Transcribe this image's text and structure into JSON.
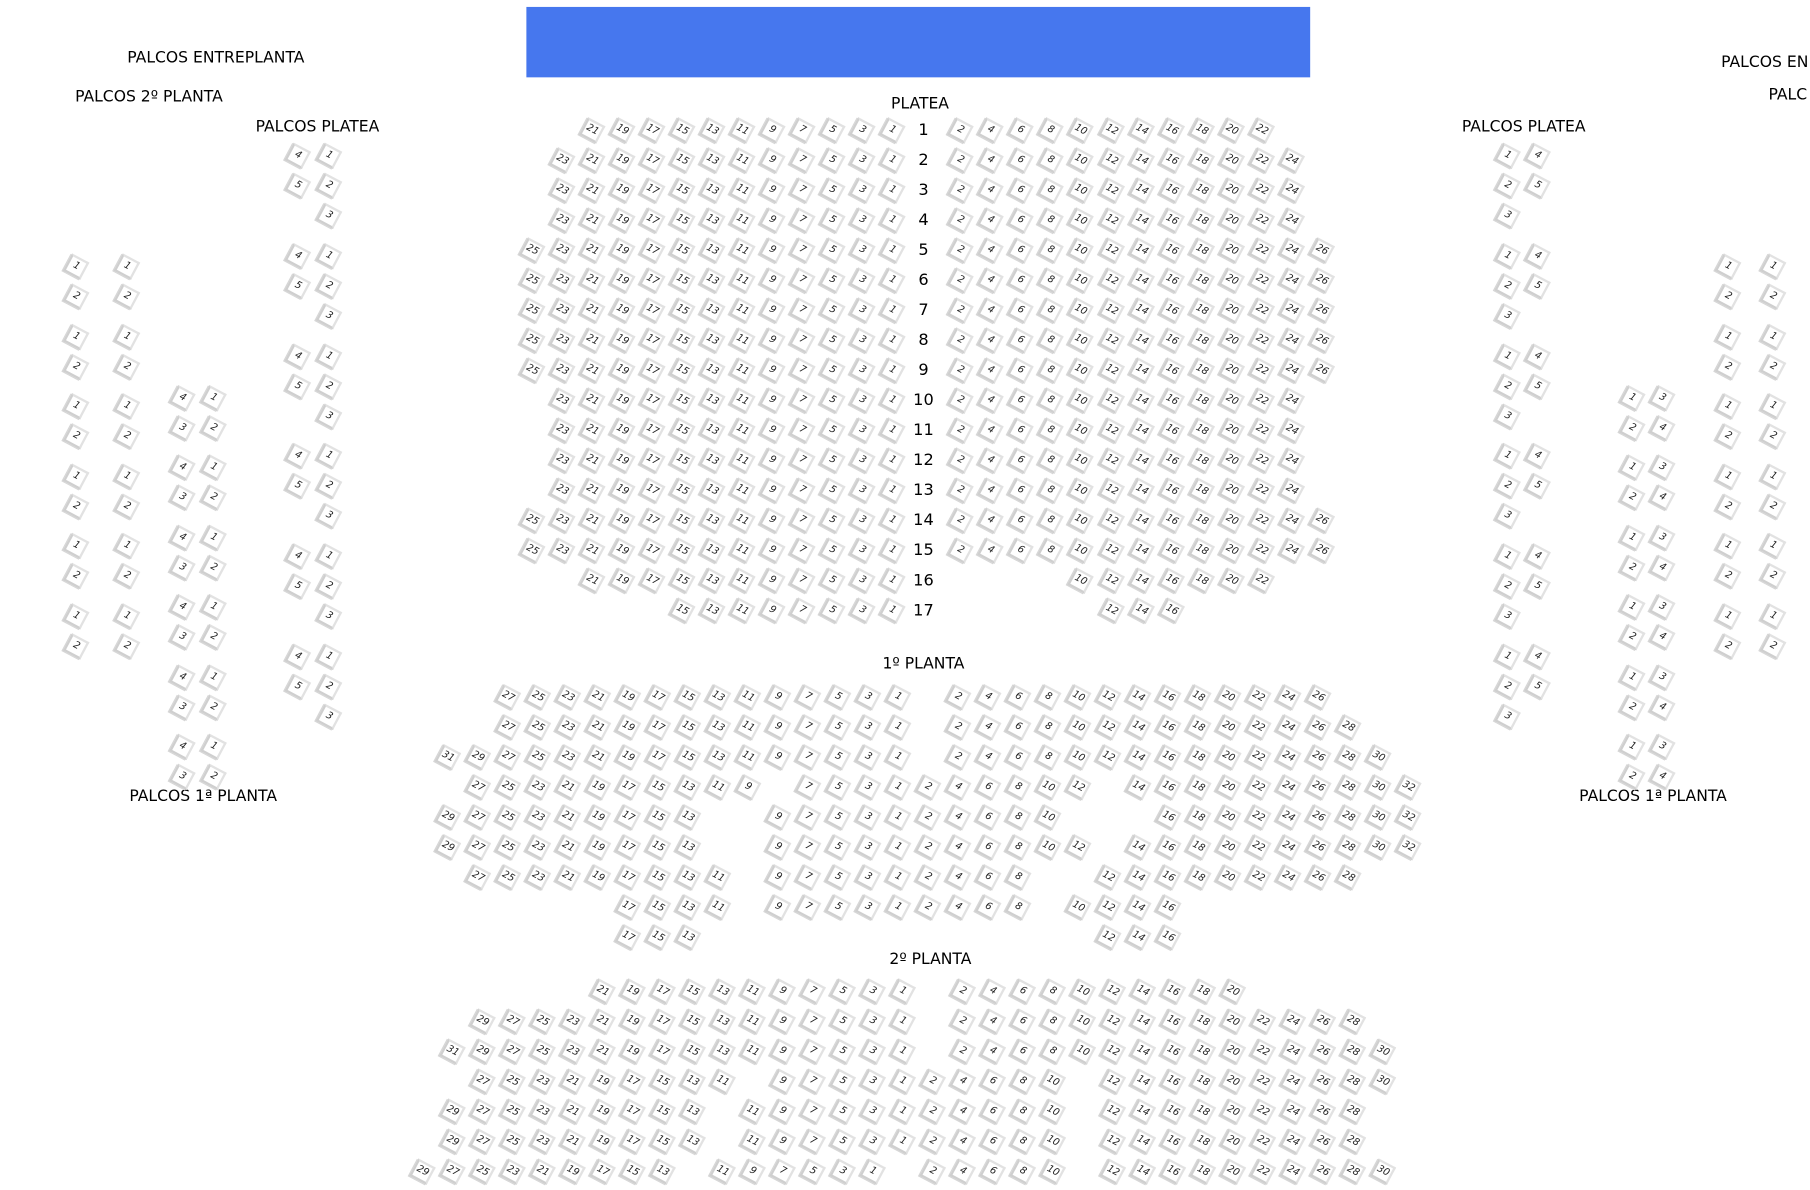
{
  "stage": {
    "color": "#4677ee"
  },
  "labels": {
    "palcos_entreplanta_left": "PALCOS ENTREPLANTA",
    "palcos_2_planta_left": "PALCOS 2º PLANTA",
    "palcos_platea_left": "PALCOS PLATEA",
    "palcos_1_planta_left": "PALCOS 1ª PLANTA",
    "palcos_entreplanta_right": "PALCOS EN",
    "palcos_2_planta_right": "PALC",
    "palcos_platea_right": "PALCOS PLATEA",
    "palcos_1_planta_right": "PALCOS 1ª PLANTA"
  },
  "platea": {
    "title": "PLATEA",
    "rows": [
      {
        "row": "1",
        "left": [
          21,
          19,
          17,
          15,
          13,
          11,
          9,
          7,
          5,
          3,
          1
        ],
        "right": [
          2,
          4,
          6,
          8,
          10,
          12,
          14,
          16,
          18,
          20,
          22
        ]
      },
      {
        "row": "2",
        "left": [
          23,
          21,
          19,
          17,
          15,
          13,
          11,
          9,
          7,
          5,
          3,
          1
        ],
        "right": [
          2,
          4,
          6,
          8,
          10,
          12,
          14,
          16,
          18,
          20,
          22,
          24
        ]
      },
      {
        "row": "3",
        "left": [
          23,
          21,
          19,
          17,
          15,
          13,
          11,
          9,
          7,
          5,
          3,
          1
        ],
        "right": [
          2,
          4,
          6,
          8,
          10,
          12,
          14,
          16,
          18,
          20,
          22,
          24
        ]
      },
      {
        "row": "4",
        "left": [
          23,
          21,
          19,
          17,
          15,
          13,
          11,
          9,
          7,
          5,
          3,
          1
        ],
        "right": [
          2,
          4,
          6,
          8,
          10,
          12,
          14,
          16,
          18,
          20,
          22,
          24
        ]
      },
      {
        "row": "5",
        "left": [
          25,
          23,
          21,
          19,
          17,
          15,
          13,
          11,
          9,
          7,
          5,
          3,
          1
        ],
        "right": [
          2,
          4,
          6,
          8,
          10,
          12,
          14,
          16,
          18,
          20,
          22,
          24,
          26
        ]
      },
      {
        "row": "6",
        "left": [
          25,
          23,
          21,
          19,
          17,
          15,
          13,
          11,
          9,
          7,
          5,
          3,
          1
        ],
        "right": [
          2,
          4,
          6,
          8,
          10,
          12,
          14,
          16,
          18,
          20,
          22,
          24,
          26
        ]
      },
      {
        "row": "7",
        "left": [
          25,
          23,
          21,
          19,
          17,
          15,
          13,
          11,
          9,
          7,
          5,
          3,
          1
        ],
        "right": [
          2,
          4,
          6,
          8,
          10,
          12,
          14,
          16,
          18,
          20,
          22,
          24,
          26
        ]
      },
      {
        "row": "8",
        "left": [
          25,
          23,
          21,
          19,
          17,
          15,
          13,
          11,
          9,
          7,
          5,
          3,
          1
        ],
        "right": [
          2,
          4,
          6,
          8,
          10,
          12,
          14,
          16,
          18,
          20,
          22,
          24,
          26
        ]
      },
      {
        "row": "9",
        "left": [
          25,
          23,
          21,
          19,
          17,
          15,
          13,
          11,
          9,
          7,
          5,
          3,
          1
        ],
        "right": [
          2,
          4,
          6,
          8,
          10,
          12,
          14,
          16,
          18,
          20,
          22,
          24,
          26
        ]
      },
      {
        "row": "10",
        "left": [
          23,
          21,
          19,
          17,
          15,
          13,
          11,
          9,
          7,
          5,
          3,
          1
        ],
        "right": [
          2,
          4,
          6,
          8,
          10,
          12,
          14,
          16,
          18,
          20,
          22,
          24
        ]
      },
      {
        "row": "11",
        "left": [
          23,
          21,
          19,
          17,
          15,
          13,
          11,
          9,
          7,
          5,
          3,
          1
        ],
        "right": [
          2,
          4,
          6,
          8,
          10,
          12,
          14,
          16,
          18,
          20,
          22,
          24
        ]
      },
      {
        "row": "12",
        "left": [
          23,
          21,
          19,
          17,
          15,
          13,
          11,
          9,
          7,
          5,
          3,
          1
        ],
        "right": [
          2,
          4,
          6,
          8,
          10,
          12,
          14,
          16,
          18,
          20,
          22,
          24
        ]
      },
      {
        "row": "13",
        "left": [
          23,
          21,
          19,
          17,
          15,
          13,
          11,
          9,
          7,
          5,
          3,
          1
        ],
        "right": [
          2,
          4,
          6,
          8,
          10,
          12,
          14,
          16,
          18,
          20,
          22,
          24
        ]
      },
      {
        "row": "14",
        "left": [
          25,
          23,
          21,
          19,
          17,
          15,
          13,
          11,
          9,
          7,
          5,
          3,
          1
        ],
        "right": [
          2,
          4,
          6,
          8,
          10,
          12,
          14,
          16,
          18,
          20,
          22,
          24,
          26
        ]
      },
      {
        "row": "15",
        "left": [
          25,
          23,
          21,
          19,
          17,
          15,
          13,
          11,
          9,
          7,
          5,
          3,
          1
        ],
        "right": [
          2,
          4,
          6,
          8,
          10,
          12,
          14,
          16,
          18,
          20,
          22,
          24,
          26
        ]
      },
      {
        "row": "16",
        "left": [
          21,
          19,
          17,
          15,
          13,
          11,
          9,
          7,
          5,
          3,
          1
        ],
        "right": [
          10,
          12,
          14,
          16,
          18,
          20,
          22
        ]
      },
      {
        "row": "17",
        "left": [
          15,
          13,
          11,
          9,
          7,
          5,
          3,
          1
        ],
        "right": [
          12,
          14,
          16
        ]
      }
    ]
  },
  "planta1": {
    "title": "1º PLANTA",
    "rows": [
      [
        [
          27,
          25,
          23,
          21,
          19,
          17,
          15,
          13,
          11,
          9,
          7,
          5,
          3,
          1
        ],
        [
          2,
          4,
          6,
          8,
          10,
          12,
          14,
          16,
          18,
          20,
          22,
          24,
          26
        ]
      ],
      [
        [
          27,
          25,
          23,
          21,
          19,
          17,
          15,
          13,
          11,
          9,
          7,
          5,
          3,
          1
        ],
        [
          2,
          4,
          6,
          8,
          10,
          12,
          14,
          16,
          18,
          20,
          22,
          24,
          26,
          28
        ]
      ],
      [
        [
          31,
          29,
          27,
          25,
          23,
          21,
          19,
          17,
          15,
          13,
          11,
          9,
          7,
          5,
          3,
          1
        ],
        [
          2,
          4,
          6,
          8,
          10,
          12,
          14,
          16,
          18,
          20,
          22,
          24,
          26,
          28,
          30
        ]
      ],
      [
        [
          27,
          25,
          23,
          21,
          19,
          17,
          15,
          13,
          11,
          9
        ],
        [
          7,
          5,
          3,
          1,
          2,
          4,
          6,
          8,
          10,
          12
        ],
        [
          14,
          16,
          18,
          20,
          22,
          24,
          26,
          28,
          30,
          32
        ]
      ],
      [
        [
          29,
          27,
          25,
          23,
          21,
          19,
          17,
          15,
          13
        ],
        [
          9,
          7,
          5,
          3,
          1,
          2,
          4,
          6,
          8,
          10
        ],
        [
          16,
          18,
          20,
          22,
          24,
          26,
          28,
          30,
          32
        ]
      ],
      [
        [
          29,
          27,
          25,
          23,
          21,
          19,
          17,
          15,
          13
        ],
        [
          9,
          7,
          5,
          3,
          1,
          2,
          4,
          6,
          8,
          10,
          12
        ],
        [
          14,
          16,
          18,
          20,
          22,
          24,
          26,
          28,
          30,
          32
        ]
      ],
      [
        [
          27,
          25,
          23,
          21,
          19,
          17,
          15,
          13,
          11
        ],
        [
          9,
          7,
          5,
          3,
          1,
          2,
          4,
          6,
          8
        ],
        [
          12,
          14,
          16,
          18,
          20,
          22,
          24,
          26,
          28
        ]
      ],
      [
        [
          17,
          15,
          13,
          11
        ],
        [
          9,
          7,
          5,
          3,
          1,
          2,
          4,
          6,
          8
        ],
        [
          10,
          12,
          14,
          16
        ]
      ],
      [
        [
          17,
          15,
          13
        ],
        [
          12,
          14,
          16
        ]
      ]
    ]
  },
  "planta2": {
    "title": "2º PLANTA",
    "rows": [
      [
        [
          21,
          19,
          17,
          15,
          13,
          11,
          9,
          7,
          5,
          3,
          1
        ],
        [
          2,
          4,
          6,
          8,
          10,
          12,
          14,
          16,
          18,
          20
        ]
      ],
      [
        [
          29,
          27,
          25,
          23,
          21,
          19,
          17,
          15,
          13,
          11,
          9,
          7,
          5,
          3,
          1
        ],
        [
          2,
          4,
          6,
          8,
          10,
          12,
          14,
          16,
          18,
          20,
          22,
          24,
          26,
          28
        ]
      ],
      [
        [
          31,
          29,
          27,
          25,
          23,
          21,
          19,
          17,
          15,
          13,
          11,
          9,
          7,
          5,
          3,
          1
        ],
        [
          2,
          4,
          6,
          8,
          10,
          12,
          14,
          16,
          18,
          20,
          22,
          24,
          26,
          28,
          30
        ]
      ],
      [
        [
          27,
          25,
          23,
          21,
          19,
          17,
          15,
          13,
          11
        ],
        [
          9,
          7,
          5,
          3,
          1,
          2,
          4,
          6,
          8,
          10
        ],
        [
          12,
          14,
          16,
          18,
          20,
          22,
          24,
          26,
          28,
          30
        ]
      ],
      [
        [
          29,
          27,
          25,
          23,
          21,
          19,
          17,
          15,
          13
        ],
        [
          11,
          9,
          7,
          5,
          3,
          1,
          2,
          4,
          6,
          8,
          10
        ],
        [
          12,
          14,
          16,
          18,
          20,
          22,
          24,
          26,
          28
        ]
      ],
      [
        [
          29,
          27,
          25,
          23,
          21,
          19,
          17,
          15,
          13
        ],
        [
          11,
          9,
          7,
          5,
          3,
          1,
          2,
          4,
          6,
          8,
          10
        ],
        [
          12,
          14,
          16,
          18,
          20,
          22,
          24,
          26,
          28
        ]
      ],
      [
        [
          29,
          27,
          25,
          23,
          21,
          19,
          17,
          15,
          13
        ],
        [
          11,
          9,
          7,
          5,
          3,
          1
        ],
        [
          2,
          4,
          6,
          8,
          10
        ],
        [
          12,
          14,
          16,
          18,
          20,
          22,
          24,
          26,
          28,
          30
        ]
      ]
    ]
  },
  "palcos": {
    "platea_left": [
      [
        1,
        2,
        3,
        4,
        5
      ],
      [
        1,
        2,
        3,
        4,
        5
      ],
      [
        1,
        2,
        3,
        4,
        5
      ],
      [
        1,
        2,
        3,
        4,
        5
      ],
      [
        1,
        2,
        3,
        4,
        5
      ],
      [
        1,
        2,
        3,
        4,
        5
      ]
    ],
    "platea_right": [
      [
        1,
        2,
        3,
        4,
        5
      ],
      [
        1,
        2,
        3,
        4,
        5
      ],
      [
        1,
        2,
        3,
        4,
        5
      ],
      [
        1,
        2,
        3,
        4,
        5
      ],
      [
        1,
        2,
        3,
        4,
        5
      ],
      [
        1,
        2,
        3,
        4,
        5
      ]
    ],
    "planta1_left": [
      [
        1,
        2,
        3,
        4
      ],
      [
        1,
        2,
        3,
        4
      ],
      [
        1,
        2,
        3,
        4
      ],
      [
        1,
        2,
        3,
        4
      ],
      [
        1,
        2,
        3,
        4
      ],
      [
        1,
        2,
        3,
        4
      ]
    ],
    "planta1_right": [
      [
        1,
        2,
        3,
        4
      ],
      [
        1,
        2,
        3,
        4
      ],
      [
        1,
        2,
        3,
        4
      ],
      [
        1,
        2,
        3,
        4
      ],
      [
        1,
        2,
        3,
        4
      ],
      [
        1,
        2,
        3,
        4
      ]
    ],
    "planta2_left": [
      [
        [
          1,
          2
        ],
        [
          1,
          2
        ]
      ],
      [
        [
          1,
          2
        ],
        [
          1,
          2
        ]
      ],
      [
        [
          1,
          2
        ],
        [
          1,
          2
        ]
      ],
      [
        [
          1,
          2
        ],
        [
          1,
          2
        ]
      ],
      [
        [
          1,
          2
        ],
        [
          1,
          2
        ]
      ],
      [
        [
          1,
          2
        ],
        [
          1,
          2
        ]
      ]
    ],
    "planta2_right": [
      [
        [
          1,
          2
        ],
        [
          1,
          2
        ]
      ],
      [
        [
          1,
          2
        ],
        [
          1,
          2
        ]
      ],
      [
        [
          1,
          2
        ],
        [
          1,
          2
        ]
      ],
      [
        [
          1,
          2
        ],
        [
          1,
          2
        ]
      ],
      [
        [
          1,
          2
        ],
        [
          1,
          2
        ]
      ],
      [
        [
          1,
          2
        ],
        [
          1,
          2
        ]
      ]
    ]
  }
}
